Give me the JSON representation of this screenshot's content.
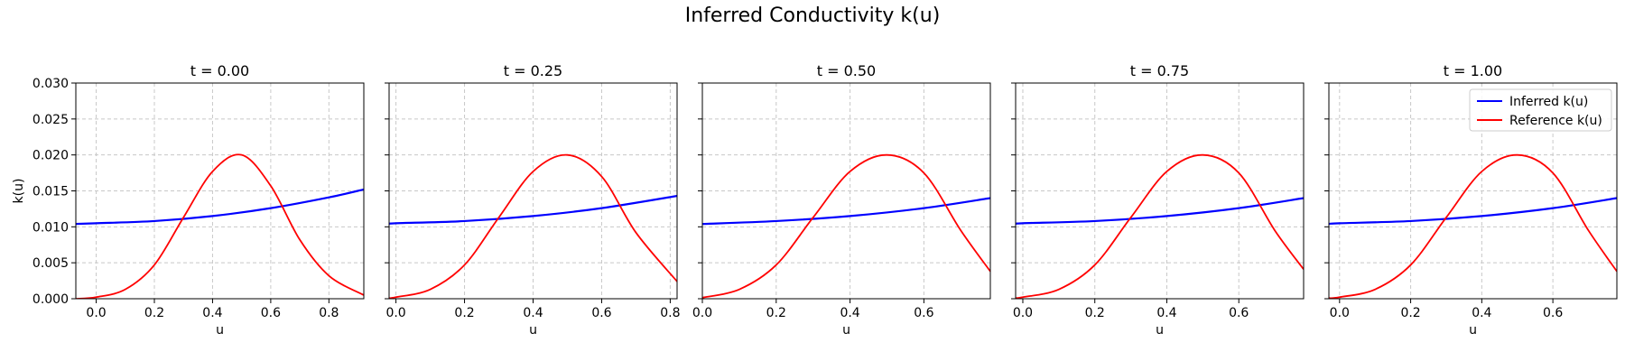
{
  "figure": {
    "title": "Inferred Conductivity k(u)"
  },
  "colors": {
    "inferred": "#0000ff",
    "reference": "#ff0000",
    "grid": "#c8c8c8"
  },
  "legend": {
    "placement": "top-right (last panel)",
    "entries": [
      "Inferred k(u)",
      "Reference k(u)"
    ]
  },
  "chart_data": [
    {
      "type": "line",
      "title": "t = 0.00",
      "xlabel": "u",
      "ylabel": "k(u)",
      "xlim": [
        -0.07,
        0.92
      ],
      "ylim": [
        0,
        0.03
      ],
      "grid": true,
      "xticks": [
        0.0,
        0.2,
        0.4,
        0.6,
        0.8
      ],
      "xtick_labels": [
        "0.0",
        "0.2",
        "0.4",
        "0.6",
        "0.8"
      ],
      "yticks": [
        0,
        0.005,
        0.01,
        0.015,
        0.02,
        0.025,
        0.03
      ],
      "ytick_labels": [
        "0.000",
        "0.005",
        "0.010",
        "0.015",
        "0.020",
        "0.025",
        "0.030"
      ],
      "series": [
        {
          "name": "Inferred k(u)",
          "x": [
            -0.07,
            0.0,
            0.2,
            0.4,
            0.6,
            0.8,
            0.92
          ],
          "y": [
            0.0104,
            0.0105,
            0.0108,
            0.0115,
            0.0126,
            0.0141,
            0.0152
          ]
        },
        {
          "name": "Reference k(u)",
          "x": [
            -0.07,
            0.0,
            0.1,
            0.2,
            0.3,
            0.4,
            0.5,
            0.6,
            0.7,
            0.8,
            0.92
          ],
          "y": [
            0.0,
            0.00022,
            0.0013,
            0.0047,
            0.0113,
            0.0177,
            0.02,
            0.0157,
            0.0082,
            0.0032,
            0.0005
          ]
        }
      ]
    },
    {
      "type": "line",
      "title": "t = 0.25",
      "xlabel": "u",
      "xlim": [
        -0.02,
        0.82
      ],
      "ylim": [
        0,
        0.03
      ],
      "grid": true,
      "xticks": [
        0.0,
        0.2,
        0.4,
        0.6,
        0.8
      ],
      "xtick_labels": [
        "0.0",
        "0.2",
        "0.4",
        "0.6",
        "0.8"
      ],
      "yticks": [
        0,
        0.005,
        0.01,
        0.015,
        0.02,
        0.025,
        0.03
      ],
      "series": [
        {
          "name": "Inferred k(u)",
          "x": [
            -0.02,
            0.0,
            0.2,
            0.4,
            0.6,
            0.82
          ],
          "y": [
            0.0104,
            0.0105,
            0.0108,
            0.0115,
            0.0126,
            0.0143
          ]
        },
        {
          "name": "Reference k(u)",
          "x": [
            -0.02,
            0.0,
            0.1,
            0.2,
            0.3,
            0.4,
            0.5,
            0.6,
            0.7,
            0.82
          ],
          "y": [
            8e-05,
            0.00022,
            0.0013,
            0.0047,
            0.0113,
            0.0177,
            0.02,
            0.017,
            0.0092,
            0.0024
          ]
        }
      ]
    },
    {
      "type": "line",
      "title": "t = 0.50",
      "xlabel": "u",
      "xlim": [
        0.0,
        0.78
      ],
      "ylim": [
        0,
        0.03
      ],
      "grid": true,
      "xticks": [
        0.0,
        0.2,
        0.4,
        0.6
      ],
      "xtick_labels": [
        "0.0",
        "0.2",
        "0.4",
        "0.6"
      ],
      "yticks": [
        0,
        0.005,
        0.01,
        0.015,
        0.02,
        0.025,
        0.03
      ],
      "series": [
        {
          "name": "Inferred k(u)",
          "x": [
            0.0,
            0.2,
            0.4,
            0.6,
            0.78
          ],
          "y": [
            0.0104,
            0.0108,
            0.0115,
            0.0126,
            0.014
          ]
        },
        {
          "name": "Reference k(u)",
          "x": [
            0.0,
            0.1,
            0.2,
            0.3,
            0.4,
            0.5,
            0.6,
            0.7,
            0.78
          ],
          "y": [
            0.00015,
            0.0013,
            0.0047,
            0.0113,
            0.0177,
            0.02,
            0.0175,
            0.0095,
            0.0038
          ]
        }
      ]
    },
    {
      "type": "line",
      "title": "t = 0.75",
      "xlabel": "u",
      "xlim": [
        -0.02,
        0.78
      ],
      "ylim": [
        0,
        0.03
      ],
      "grid": true,
      "xticks": [
        0.0,
        0.2,
        0.4,
        0.6
      ],
      "xtick_labels": [
        "0.0",
        "0.2",
        "0.4",
        "0.6"
      ],
      "yticks": [
        0,
        0.005,
        0.01,
        0.015,
        0.02,
        0.025,
        0.03
      ],
      "series": [
        {
          "name": "Inferred k(u)",
          "x": [
            -0.02,
            0.0,
            0.2,
            0.4,
            0.6,
            0.78
          ],
          "y": [
            0.0104,
            0.0105,
            0.0108,
            0.0115,
            0.0126,
            0.014
          ]
        },
        {
          "name": "Reference k(u)",
          "x": [
            -0.02,
            0.0,
            0.1,
            0.2,
            0.3,
            0.4,
            0.5,
            0.6,
            0.7,
            0.78
          ],
          "y": [
            0.0001,
            0.00022,
            0.0013,
            0.0047,
            0.0113,
            0.0177,
            0.02,
            0.0175,
            0.0095,
            0.0041
          ]
        }
      ]
    },
    {
      "type": "line",
      "title": "t = 1.00",
      "xlabel": "u",
      "xlim": [
        -0.03,
        0.78
      ],
      "ylim": [
        0,
        0.03
      ],
      "grid": true,
      "xticks": [
        0.0,
        0.2,
        0.4,
        0.6
      ],
      "xtick_labels": [
        "0.0",
        "0.2",
        "0.4",
        "0.6"
      ],
      "yticks": [
        0,
        0.005,
        0.01,
        0.015,
        0.02,
        0.025,
        0.03
      ],
      "series": [
        {
          "name": "Inferred k(u)",
          "x": [
            -0.03,
            0.0,
            0.2,
            0.4,
            0.6,
            0.78
          ],
          "y": [
            0.0104,
            0.0105,
            0.0108,
            0.0115,
            0.0126,
            0.014
          ]
        },
        {
          "name": "Reference k(u)",
          "x": [
            -0.03,
            0.0,
            0.1,
            0.2,
            0.3,
            0.4,
            0.5,
            0.6,
            0.7,
            0.78
          ],
          "y": [
            8e-05,
            0.00022,
            0.0013,
            0.0047,
            0.0113,
            0.0177,
            0.02,
            0.0175,
            0.0095,
            0.0038
          ]
        }
      ]
    }
  ]
}
